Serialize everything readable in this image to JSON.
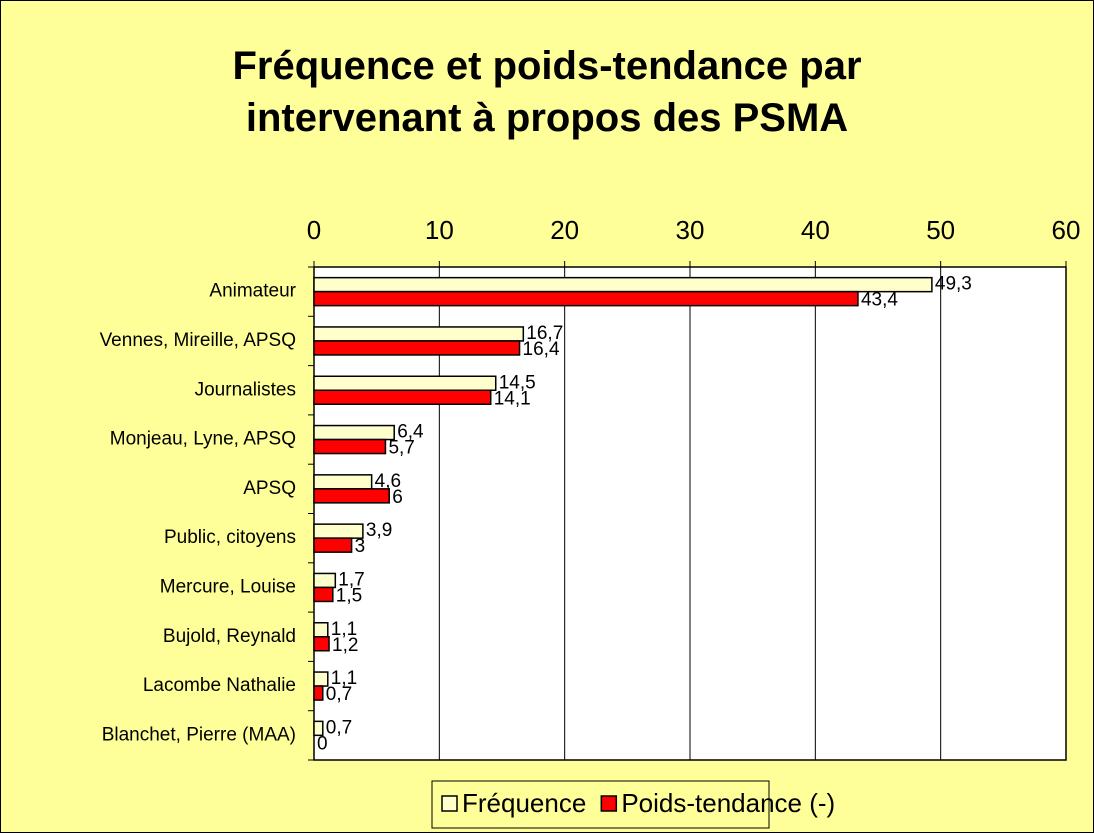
{
  "chart_data": {
    "type": "bar",
    "orientation": "horizontal",
    "title": "Fréquence et poids-tendance par intervenant à propos des PSMA",
    "categories": [
      "Animateur",
      "Vennes, Mireille, APSQ",
      "Journalistes",
      "Monjeau, Lyne, APSQ",
      "APSQ",
      "Public, citoyens",
      "Mercure, Louise",
      "Bujold, Reynald",
      "Lacombe Nathalie",
      "Blanchet, Pierre (MAA)"
    ],
    "series": [
      {
        "name": "Fréquence",
        "color": "#ffffcc",
        "values": [
          49.3,
          16.7,
          14.5,
          6.4,
          4.6,
          3.9,
          1.7,
          1.1,
          1.1,
          0.7
        ],
        "value_labels": [
          "49,3",
          "16,7",
          "14,5",
          "6,4",
          "4,6",
          "3,9",
          "1,7",
          "1,1",
          "1,1",
          "0,7"
        ]
      },
      {
        "name": "Poids-tendance (-)",
        "color": "#ff0000",
        "values": [
          43.4,
          16.4,
          14.1,
          5.7,
          6,
          3,
          1.5,
          1.2,
          0.7,
          0
        ],
        "value_labels": [
          "43,4",
          "16,4",
          "14,1",
          "5,7",
          "6",
          "3",
          "1,5",
          "1,2",
          "0,7",
          "0"
        ]
      }
    ],
    "xlim": [
      0,
      60
    ],
    "xticks": [
      0,
      10,
      20,
      30,
      40,
      50,
      60
    ],
    "grid": true,
    "legend": "bottom"
  }
}
